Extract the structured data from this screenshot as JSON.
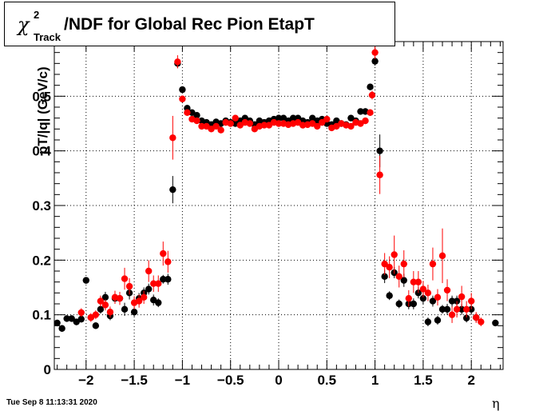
{
  "title": {
    "chi": "χ",
    "sup": "2",
    "sub": "Track",
    "main": "/NDF for Global Rec Pion EtapT"
  },
  "timestamp": "Tue Sep  8 11:13:31 2020",
  "chart_data": {
    "type": "scatter",
    "xlabel": "η",
    "ylabel": "pT/|q| (GeV/c)",
    "xlim": [
      -2.33,
      2.33
    ],
    "ylim": [
      0,
      0.6
    ],
    "xticks": [
      -2,
      -1.5,
      -1,
      -0.5,
      0,
      0.5,
      1,
      1.5,
      2
    ],
    "xtick_labels": [
      "−2",
      "−1.5",
      "−1",
      "−0.5",
      "0",
      "0.5",
      "1",
      "1.5",
      "2"
    ],
    "yticks": [
      0,
      0.1,
      0.2,
      0.3,
      0.4,
      0.5
    ],
    "ytick_labels": [
      "0",
      "0.1",
      "0.2",
      "0.3",
      "0.4",
      "0.5"
    ],
    "grid": true,
    "legend": "none",
    "series": [
      {
        "color": "#000000",
        "points": [
          [
            -2.3,
            0.085,
            0.006
          ],
          [
            -2.25,
            0.075,
            0.006
          ],
          [
            -2.2,
            0.093,
            0.006
          ],
          [
            -2.15,
            0.093,
            0.006
          ],
          [
            -2.1,
            0.087,
            0.006
          ],
          [
            -2.05,
            0.092,
            0.006
          ],
          [
            -2.0,
            0.163,
            0.006
          ],
          [
            -1.95,
            0.095,
            0.006
          ],
          [
            -1.9,
            0.08,
            0.006
          ],
          [
            -1.85,
            0.11,
            0.008
          ],
          [
            -1.8,
            0.132,
            0.01
          ],
          [
            -1.75,
            0.098,
            0.008
          ],
          [
            -1.7,
            0.13,
            0.01
          ],
          [
            -1.65,
            0.13,
            0.01
          ],
          [
            -1.6,
            0.11,
            0.012
          ],
          [
            -1.55,
            0.14,
            0.012
          ],
          [
            -1.5,
            0.105,
            0.008
          ],
          [
            -1.45,
            0.13,
            0.01
          ],
          [
            -1.4,
            0.14,
            0.01
          ],
          [
            -1.35,
            0.147,
            0.01
          ],
          [
            -1.3,
            0.127,
            0.01
          ],
          [
            -1.25,
            0.122,
            0.008
          ],
          [
            -1.2,
            0.165,
            0.008
          ],
          [
            -1.15,
            0.165,
            0.01
          ],
          [
            -1.1,
            0.329,
            0.025
          ],
          [
            -1.05,
            0.56,
            0.008
          ],
          [
            -1.0,
            0.512,
            0.006
          ],
          [
            -0.95,
            0.478,
            0.005
          ],
          [
            -0.9,
            0.47,
            0.005
          ],
          [
            -0.85,
            0.465,
            0.005
          ],
          [
            -0.8,
            0.455,
            0.005
          ],
          [
            -0.75,
            0.452,
            0.005
          ],
          [
            -0.7,
            0.448,
            0.005
          ],
          [
            -0.65,
            0.453,
            0.005
          ],
          [
            -0.6,
            0.45,
            0.005
          ],
          [
            -0.55,
            0.455,
            0.005
          ],
          [
            -0.5,
            0.452,
            0.005
          ],
          [
            -0.45,
            0.45,
            0.005
          ],
          [
            -0.4,
            0.455,
            0.005
          ],
          [
            -0.35,
            0.46,
            0.005
          ],
          [
            -0.3,
            0.455,
            0.005
          ],
          [
            -0.25,
            0.448,
            0.005
          ],
          [
            -0.2,
            0.455,
            0.005
          ],
          [
            -0.15,
            0.452,
            0.005
          ],
          [
            -0.1,
            0.455,
            0.005
          ],
          [
            -0.05,
            0.458,
            0.005
          ],
          [
            0.0,
            0.46,
            0.005
          ],
          [
            0.05,
            0.46,
            0.005
          ],
          [
            0.1,
            0.455,
            0.005
          ],
          [
            0.15,
            0.46,
            0.005
          ],
          [
            0.2,
            0.46,
            0.005
          ],
          [
            0.25,
            0.455,
            0.005
          ],
          [
            0.3,
            0.452,
            0.005
          ],
          [
            0.35,
            0.46,
            0.005
          ],
          [
            0.4,
            0.455,
            0.005
          ],
          [
            0.45,
            0.458,
            0.005
          ],
          [
            0.5,
            0.45,
            0.005
          ],
          [
            0.55,
            0.448,
            0.005
          ],
          [
            0.6,
            0.455,
            0.005
          ],
          [
            0.65,
            0.45,
            0.005
          ],
          [
            0.7,
            0.448,
            0.005
          ],
          [
            0.75,
            0.46,
            0.005
          ],
          [
            0.8,
            0.455,
            0.005
          ],
          [
            0.85,
            0.472,
            0.005
          ],
          [
            0.9,
            0.472,
            0.006
          ],
          [
            0.95,
            0.517,
            0.006
          ],
          [
            1.0,
            0.564,
            0.008
          ],
          [
            1.05,
            0.4,
            0.03
          ],
          [
            1.1,
            0.17,
            0.012
          ],
          [
            1.15,
            0.135,
            0.008
          ],
          [
            1.2,
            0.177,
            0.01
          ],
          [
            1.25,
            0.12,
            0.008
          ],
          [
            1.3,
            0.163,
            0.012
          ],
          [
            1.35,
            0.12,
            0.01
          ],
          [
            1.4,
            0.12,
            0.01
          ],
          [
            1.45,
            0.14,
            0.01
          ],
          [
            1.5,
            0.13,
            0.01
          ],
          [
            1.55,
            0.087,
            0.008
          ],
          [
            1.6,
            0.125,
            0.01
          ],
          [
            1.65,
            0.09,
            0.008
          ],
          [
            1.7,
            0.11,
            0.008
          ],
          [
            1.75,
            0.11,
            0.01
          ],
          [
            1.8,
            0.125,
            0.01
          ],
          [
            1.85,
            0.125,
            0.01
          ],
          [
            1.9,
            0.11,
            0.01
          ],
          [
            1.95,
            0.094,
            0.008
          ],
          [
            2.0,
            0.11,
            0.01
          ],
          [
            2.05,
            0.095,
            0.008
          ],
          [
            2.25,
            0.085,
            0.006
          ]
        ]
      },
      {
        "color": "#ff0000",
        "points": [
          [
            -2.05,
            0.104,
            0.008
          ],
          [
            -1.95,
            0.095,
            0.008
          ],
          [
            -1.9,
            0.1,
            0.008
          ],
          [
            -1.85,
            0.125,
            0.01
          ],
          [
            -1.8,
            0.118,
            0.01
          ],
          [
            -1.75,
            0.105,
            0.01
          ],
          [
            -1.7,
            0.132,
            0.012
          ],
          [
            -1.65,
            0.13,
            0.012
          ],
          [
            -1.6,
            0.166,
            0.02
          ],
          [
            -1.55,
            0.152,
            0.015
          ],
          [
            -1.5,
            0.122,
            0.012
          ],
          [
            -1.45,
            0.125,
            0.012
          ],
          [
            -1.4,
            0.132,
            0.012
          ],
          [
            -1.35,
            0.18,
            0.02
          ],
          [
            -1.3,
            0.157,
            0.015
          ],
          [
            -1.25,
            0.157,
            0.015
          ],
          [
            -1.2,
            0.212,
            0.022
          ],
          [
            -1.15,
            0.197,
            0.02
          ],
          [
            -1.1,
            0.424,
            0.04
          ],
          [
            -1.05,
            0.563,
            0.012
          ],
          [
            -1.0,
            0.495,
            0.006
          ],
          [
            -0.95,
            0.47,
            0.005
          ],
          [
            -0.9,
            0.458,
            0.005
          ],
          [
            -0.85,
            0.455,
            0.005
          ],
          [
            -0.8,
            0.445,
            0.005
          ],
          [
            -0.75,
            0.445,
            0.005
          ],
          [
            -0.7,
            0.44,
            0.005
          ],
          [
            -0.65,
            0.445,
            0.005
          ],
          [
            -0.6,
            0.438,
            0.005
          ],
          [
            -0.55,
            0.452,
            0.005
          ],
          [
            -0.5,
            0.45,
            0.005
          ],
          [
            -0.45,
            0.46,
            0.005
          ],
          [
            -0.4,
            0.447,
            0.005
          ],
          [
            -0.35,
            0.452,
            0.005
          ],
          [
            -0.3,
            0.45,
            0.005
          ],
          [
            -0.25,
            0.44,
            0.005
          ],
          [
            -0.2,
            0.445,
            0.005
          ],
          [
            -0.15,
            0.447,
            0.005
          ],
          [
            -0.1,
            0.447,
            0.005
          ],
          [
            -0.05,
            0.452,
            0.005
          ],
          [
            0.0,
            0.45,
            0.005
          ],
          [
            0.05,
            0.45,
            0.005
          ],
          [
            0.1,
            0.448,
            0.005
          ],
          [
            0.15,
            0.45,
            0.005
          ],
          [
            0.2,
            0.452,
            0.005
          ],
          [
            0.25,
            0.447,
            0.005
          ],
          [
            0.3,
            0.448,
            0.005
          ],
          [
            0.35,
            0.45,
            0.005
          ],
          [
            0.4,
            0.445,
            0.005
          ],
          [
            0.45,
            0.452,
            0.005
          ],
          [
            0.5,
            0.458,
            0.005
          ],
          [
            0.55,
            0.442,
            0.005
          ],
          [
            0.6,
            0.445,
            0.005
          ],
          [
            0.65,
            0.45,
            0.005
          ],
          [
            0.7,
            0.447,
            0.005
          ],
          [
            0.75,
            0.445,
            0.005
          ],
          [
            0.8,
            0.452,
            0.005
          ],
          [
            0.85,
            0.45,
            0.005
          ],
          [
            0.9,
            0.455,
            0.006
          ],
          [
            0.95,
            0.47,
            0.006
          ],
          [
            0.97,
            0.502,
            0.008
          ],
          [
            1.0,
            0.58,
            0.012
          ],
          [
            1.05,
            0.356,
            0.035
          ],
          [
            1.1,
            0.193,
            0.02
          ],
          [
            1.15,
            0.187,
            0.02
          ],
          [
            1.2,
            0.21,
            0.035
          ],
          [
            1.25,
            0.17,
            0.02
          ],
          [
            1.3,
            0.193,
            0.025
          ],
          [
            1.35,
            0.13,
            0.015
          ],
          [
            1.4,
            0.16,
            0.02
          ],
          [
            1.45,
            0.16,
            0.02
          ],
          [
            1.5,
            0.147,
            0.015
          ],
          [
            1.55,
            0.14,
            0.015
          ],
          [
            1.6,
            0.193,
            0.03
          ],
          [
            1.65,
            0.132,
            0.015
          ],
          [
            1.7,
            0.208,
            0.05
          ],
          [
            1.75,
            0.145,
            0.02
          ],
          [
            1.8,
            0.1,
            0.015
          ],
          [
            1.85,
            0.11,
            0.015
          ],
          [
            1.9,
            0.133,
            0.02
          ],
          [
            1.95,
            0.11,
            0.015
          ],
          [
            2.0,
            0.125,
            0.015
          ],
          [
            2.05,
            0.095,
            0.01
          ],
          [
            2.1,
            0.087,
            0.008
          ]
        ]
      }
    ]
  }
}
